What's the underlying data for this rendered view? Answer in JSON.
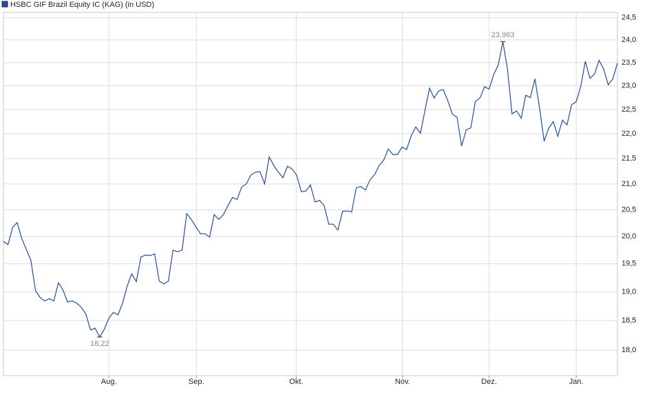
{
  "chart_data": {
    "type": "line",
    "series": [
      {
        "name": "HSBC GIF Brazil Equity IC (KAG) (in USD)",
        "color": "#1f4e9c",
        "values": [
          19.91,
          19.85,
          20.17,
          20.26,
          19.96,
          19.76,
          19.56,
          19.02,
          18.9,
          18.84,
          18.88,
          18.84,
          19.16,
          19.03,
          18.82,
          18.84,
          18.8,
          18.73,
          18.61,
          18.34,
          18.37,
          18.22,
          18.35,
          18.54,
          18.64,
          18.6,
          18.8,
          19.1,
          19.32,
          19.18,
          19.62,
          19.66,
          19.65,
          19.68,
          19.19,
          19.14,
          19.19,
          19.75,
          19.72,
          19.75,
          20.43,
          20.32,
          20.18,
          20.05,
          20.05,
          19.99,
          20.41,
          20.32,
          20.41,
          20.58,
          20.74,
          20.7,
          20.94,
          21.0,
          21.17,
          21.23,
          21.24,
          21.0,
          21.53,
          21.36,
          21.23,
          21.12,
          21.35,
          21.29,
          21.17,
          20.85,
          20.86,
          20.98,
          20.65,
          20.68,
          20.58,
          20.23,
          20.23,
          20.12,
          20.47,
          20.48,
          20.46,
          20.92,
          20.95,
          20.88,
          21.08,
          21.18,
          21.36,
          21.47,
          21.69,
          21.58,
          21.58,
          21.73,
          21.68,
          21.96,
          22.14,
          22.01,
          22.48,
          22.95,
          22.74,
          22.89,
          22.92,
          22.68,
          22.4,
          22.34,
          21.75,
          22.08,
          22.12,
          22.67,
          22.74,
          22.98,
          22.93,
          23.24,
          23.45,
          23.963,
          23.36,
          22.41,
          22.47,
          22.32,
          22.8,
          22.75,
          23.15,
          22.54,
          21.85,
          22.11,
          22.25,
          21.95,
          22.28,
          22.18,
          22.6,
          22.66,
          22.99,
          23.53,
          23.16,
          23.25,
          23.55,
          23.36,
          23.02,
          23.15,
          23.49
        ]
      }
    ],
    "annotations": [
      {
        "value": 23.963,
        "label": "23,963"
      },
      {
        "value": 18.22,
        "label": "18,22"
      }
    ],
    "xlim": [
      0,
      134
    ],
    "xticks": [
      {
        "value": 23,
        "label": "Aug."
      },
      {
        "value": 42.1,
        "label": "Sep."
      },
      {
        "value": 63.9,
        "label": "Okt."
      },
      {
        "value": 87.1,
        "label": "Nov."
      },
      {
        "value": 106,
        "label": "Dez."
      },
      {
        "value": 125,
        "label": "Jan."
      }
    ],
    "ylim": [
      17.58,
      24.62
    ],
    "log_y": true,
    "yticks": [
      {
        "value": 18,
        "label": "18,0"
      },
      {
        "value": 18.5,
        "label": "18,5"
      },
      {
        "value": 19,
        "label": "19,0"
      },
      {
        "value": 19.5,
        "label": "19,5"
      },
      {
        "value": 20,
        "label": "20,0"
      },
      {
        "value": 20.5,
        "label": "20,5"
      },
      {
        "value": 21,
        "label": "21,0"
      },
      {
        "value": 21.5,
        "label": "21,5"
      },
      {
        "value": 22,
        "label": "22,0"
      },
      {
        "value": 22.5,
        "label": "22,5"
      },
      {
        "value": 23,
        "label": "23,0"
      },
      {
        "value": 23.5,
        "label": "23,5"
      },
      {
        "value": 24,
        "label": "24,0"
      },
      {
        "value": 24.5,
        "label": "24,5"
      }
    ],
    "grid": true
  }
}
